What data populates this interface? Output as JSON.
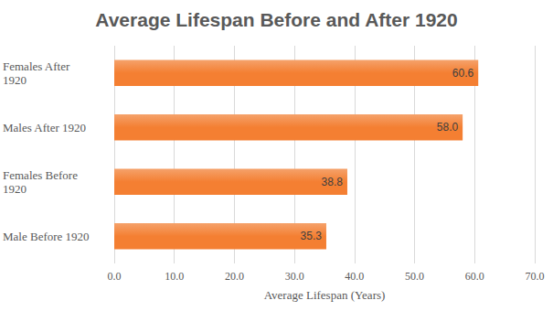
{
  "chart_data": {
    "type": "bar",
    "title": "Average Lifespan Before and After 1920",
    "orientation": "horizontal",
    "categories": [
      "Male Before 1920",
      "Females Before 1920",
      "Males After 1920",
      "Females After 1920"
    ],
    "values": [
      35.3,
      38.8,
      58.0,
      60.6
    ],
    "value_labels": [
      "35.3",
      "38.8",
      "58.0",
      "60.6"
    ],
    "color": "#f47f32",
    "x_label": "Average Lifespan (Years)",
    "xlim": [
      0,
      70
    ],
    "xticks": [
      {
        "value": 0,
        "label": "0.0"
      },
      {
        "value": 10,
        "label": "10.0"
      },
      {
        "value": 20,
        "label": "20.0"
      },
      {
        "value": 30,
        "label": "30.0"
      },
      {
        "value": 40,
        "label": "40.0"
      },
      {
        "value": 50,
        "label": "50.0"
      },
      {
        "value": 60,
        "label": "60.0"
      },
      {
        "value": 70,
        "label": "70.0"
      }
    ],
    "grid": true,
    "data_labels": true
  }
}
